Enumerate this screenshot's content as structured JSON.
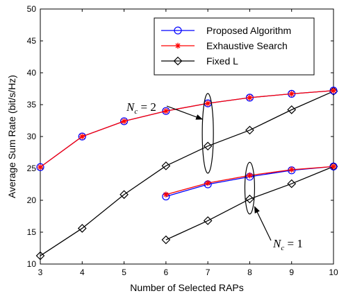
{
  "chart_data": {
    "type": "line",
    "title": "",
    "xlabel": "Number of Selected RAPs",
    "ylabel": "Average Sum Rate (bit/s/Hz)",
    "xlim": [
      3,
      10
    ],
    "ylim": [
      10,
      50
    ],
    "xticks": [
      3,
      4,
      5,
      6,
      7,
      8,
      9,
      10
    ],
    "yticks": [
      10,
      15,
      20,
      25,
      30,
      35,
      40,
      45,
      50
    ],
    "grid": false,
    "legend_position": "top-right",
    "series": [
      {
        "name": "Proposed Algorithm",
        "group": "Nc=2",
        "color": "#0000ff",
        "marker": "circle",
        "x": [
          3,
          4,
          5,
          6,
          7,
          8,
          9,
          10
        ],
        "values": [
          25.2,
          30.0,
          32.4,
          34.0,
          35.2,
          36.1,
          36.7,
          37.2
        ]
      },
      {
        "name": "Exhaustive Search",
        "group": "Nc=2",
        "color": "#ff0000",
        "marker": "star",
        "x": [
          3,
          4,
          5,
          6,
          7,
          8,
          9,
          10
        ],
        "values": [
          25.2,
          30.0,
          32.4,
          34.0,
          35.2,
          36.1,
          36.7,
          37.2
        ]
      },
      {
        "name": "Fixed L",
        "group": "Nc=2",
        "color": "#000000",
        "marker": "diamond",
        "x": [
          3,
          4,
          5,
          6,
          7,
          8,
          9,
          10
        ],
        "values": [
          11.3,
          15.6,
          20.9,
          25.4,
          28.5,
          31.0,
          34.2,
          37.1
        ]
      },
      {
        "name": "Proposed Algorithm",
        "group": "Nc=1",
        "color": "#0000ff",
        "marker": "circle",
        "x": [
          6,
          7,
          8,
          9,
          10
        ],
        "values": [
          20.6,
          22.5,
          23.7,
          24.7,
          25.3
        ]
      },
      {
        "name": "Exhaustive Search",
        "group": "Nc=1",
        "color": "#ff0000",
        "marker": "star",
        "x": [
          6,
          7,
          8,
          9,
          10
        ],
        "values": [
          20.9,
          22.7,
          23.9,
          24.8,
          25.3
        ]
      },
      {
        "name": "Fixed L",
        "group": "Nc=1",
        "color": "#000000",
        "marker": "diamond",
        "x": [
          6,
          7,
          8,
          9,
          10
        ],
        "values": [
          13.8,
          16.8,
          20.2,
          22.6,
          25.3
        ]
      }
    ],
    "legend": [
      {
        "label": "Proposed Algorithm",
        "color": "#0000ff",
        "marker": "circle"
      },
      {
        "label": "Exhaustive Search",
        "color": "#ff0000",
        "marker": "star"
      },
      {
        "label": "Fixed L",
        "color": "#000000",
        "marker": "diamond"
      }
    ],
    "annotations": [
      {
        "symbol": "N",
        "subscript": "c",
        "text": " = 2",
        "x": 7,
        "y": 32.5
      },
      {
        "symbol": "N",
        "subscript": "c",
        "text": " = 1",
        "x": 8,
        "y": 19.0
      }
    ]
  }
}
